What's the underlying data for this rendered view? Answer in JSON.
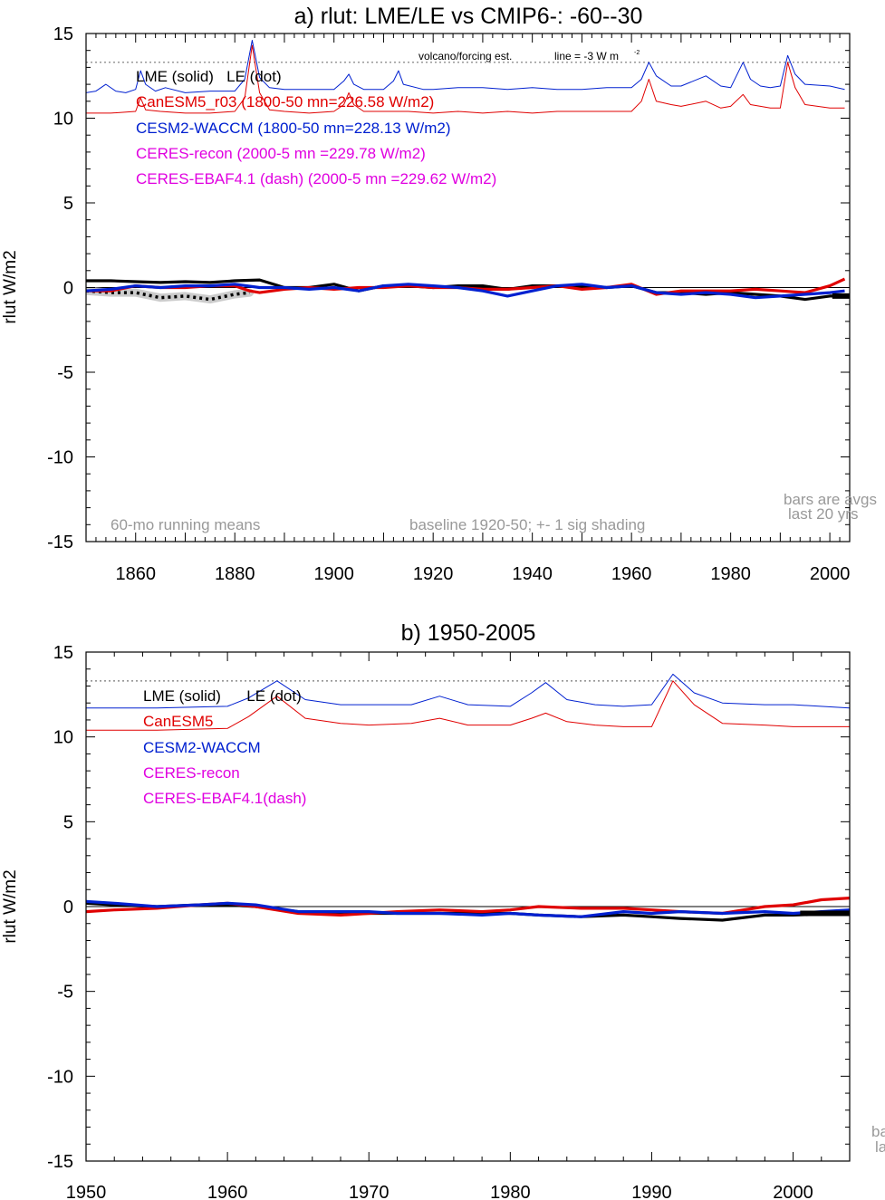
{
  "chart_data": [
    {
      "type": "line",
      "title": "a) rlut: LME/LE vs CMIP6-: -60--30",
      "ylabel": "rlut W/m2",
      "xlabel": "",
      "xlim": [
        1850,
        2004
      ],
      "ylim": [
        -15,
        15
      ],
      "x_ticks": [
        1860,
        1880,
        1900,
        1920,
        1940,
        1960,
        1980,
        2000
      ],
      "y_ticks": [
        -15,
        -10,
        -5,
        0,
        5,
        10,
        15
      ],
      "grid": false,
      "legend_position": "top-left",
      "legend": [
        {
          "text": "LME (solid)   LE (dot)",
          "color": "#000000"
        },
        {
          "text": "CanESM5_r03 (1800-50 mn=226.58 W/m2)",
          "color": "#e00000"
        },
        {
          "text": "CESM2-WACCM (1800-50 mn=228.13 W/m2)",
          "color": "#0020d0"
        },
        {
          "text": "CERES-recon (2000-5 mn =229.78 W/m2)",
          "color": "#e000e0"
        },
        {
          "text": "CERES-EBAF4.1 (dash) (2000-5 mn =229.62 W/m2)",
          "color": "#e000e0"
        }
      ],
      "annotations": {
        "volcano": "volcano/forcing est.",
        "line": "line = -3 W m",
        "line_sup": "-2",
        "running_means": "60-mo running means",
        "baseline": "baseline 1920-50; +- 1 sig shading",
        "bars1": "bars are avgs",
        "bars2": "last 20 yrs"
      },
      "reference_lines": {
        "zero": 0,
        "dotted": 13.3
      },
      "series": [
        {
          "name": "LME",
          "color": "#000000",
          "style": "solid-thick",
          "x": [
            1850,
            1855,
            1860,
            1865,
            1870,
            1875,
            1880,
            1885,
            1890,
            1895,
            1900,
            1905,
            1910,
            1915,
            1920,
            1925,
            1930,
            1935,
            1940,
            1945,
            1950,
            1955,
            1960,
            1965,
            1970,
            1975,
            1980,
            1985,
            1990,
            1995,
            2000,
            2004
          ],
          "y": [
            0.4,
            0.4,
            0.35,
            0.3,
            0.35,
            0.3,
            0.4,
            0.45,
            0.0,
            0.0,
            0.2,
            -0.2,
            0.1,
            0.1,
            0.0,
            0.1,
            0.1,
            -0.1,
            0.1,
            0.1,
            0.1,
            0.0,
            0.1,
            -0.3,
            -0.3,
            -0.4,
            -0.3,
            -0.4,
            -0.5,
            -0.7,
            -0.5,
            -0.5
          ]
        },
        {
          "name": "LE",
          "color": "#000000",
          "style": "dotted",
          "x": [
            1850,
            1855,
            1860,
            1865,
            1870,
            1875,
            1880,
            1883
          ],
          "y": [
            -0.2,
            -0.3,
            -0.3,
            -0.6,
            -0.5,
            -0.7,
            -0.4,
            -0.3
          ]
        },
        {
          "name": "CanESM5",
          "color": "#e00000",
          "style": "solid-thick",
          "x": [
            1850,
            1855,
            1860,
            1865,
            1870,
            1875,
            1880,
            1883,
            1885,
            1890,
            1895,
            1900,
            1905,
            1910,
            1915,
            1920,
            1925,
            1930,
            1935,
            1940,
            1945,
            1950,
            1955,
            1960,
            1965,
            1970,
            1975,
            1980,
            1985,
            1990,
            1995,
            2000,
            2003
          ],
          "y": [
            -0.2,
            -0.2,
            0.1,
            0.0,
            0.0,
            0.1,
            0.1,
            -0.2,
            -0.3,
            -0.1,
            0.0,
            -0.1,
            0.0,
            0.0,
            0.1,
            0.0,
            0.0,
            -0.1,
            -0.1,
            0.0,
            0.1,
            -0.1,
            0.0,
            0.2,
            -0.4,
            -0.2,
            -0.2,
            -0.2,
            -0.1,
            -0.2,
            -0.3,
            0.1,
            0.5
          ]
        },
        {
          "name": "CESM2-WACCM",
          "color": "#0020d0",
          "style": "solid-thick",
          "x": [
            1850,
            1855,
            1860,
            1865,
            1870,
            1875,
            1880,
            1885,
            1890,
            1895,
            1900,
            1905,
            1910,
            1915,
            1920,
            1925,
            1930,
            1935,
            1940,
            1945,
            1950,
            1955,
            1960,
            1965,
            1970,
            1975,
            1980,
            1985,
            1990,
            1995,
            2000,
            2003
          ],
          "y": [
            -0.2,
            -0.1,
            0.1,
            0.0,
            0.1,
            0.1,
            0.2,
            0.0,
            0.0,
            -0.1,
            0.0,
            -0.2,
            0.1,
            0.2,
            0.1,
            0.0,
            -0.2,
            -0.5,
            -0.2,
            0.1,
            0.2,
            0.0,
            0.1,
            -0.3,
            -0.4,
            -0.3,
            -0.4,
            -0.6,
            -0.5,
            -0.4,
            -0.3,
            -0.2
          ]
        },
        {
          "name": "CESM2-WACCM forcing",
          "color": "#0020d0",
          "style": "thin",
          "x": [
            1850,
            1852,
            1854,
            1856,
            1858,
            1860,
            1861,
            1862,
            1864,
            1866,
            1870,
            1875,
            1880,
            1882,
            1883.5,
            1885,
            1887,
            1890,
            1895,
            1900,
            1902,
            1903,
            1904,
            1906,
            1910,
            1912,
            1913,
            1914,
            1918,
            1920,
            1925,
            1930,
            1935,
            1940,
            1945,
            1950,
            1955,
            1960,
            1962,
            1963.5,
            1965,
            1968,
            1970,
            1975,
            1978,
            1980,
            1982.5,
            1984,
            1986,
            1988,
            1990,
            1991.5,
            1993,
            1995,
            2000,
            2003
          ],
          "y": [
            11.5,
            11.6,
            12.0,
            11.6,
            11.5,
            11.7,
            12.8,
            12.0,
            11.6,
            11.8,
            11.5,
            11.6,
            11.6,
            12.3,
            14.6,
            12.4,
            11.8,
            11.7,
            11.7,
            11.7,
            12.2,
            12.6,
            12.0,
            11.7,
            11.7,
            12.2,
            12.8,
            12.0,
            11.7,
            11.7,
            11.8,
            11.8,
            11.7,
            11.8,
            11.7,
            11.7,
            11.8,
            11.8,
            12.3,
            13.3,
            12.5,
            11.9,
            11.9,
            12.5,
            11.9,
            11.8,
            13.3,
            12.3,
            11.9,
            11.8,
            11.9,
            13.7,
            12.6,
            12.0,
            11.9,
            11.7
          ]
        },
        {
          "name": "CanESM5 forcing",
          "color": "#e00000",
          "style": "thin",
          "x": [
            1850,
            1855,
            1860,
            1861,
            1862,
            1865,
            1870,
            1875,
            1880,
            1882,
            1883.5,
            1885,
            1887,
            1890,
            1895,
            1900,
            1902,
            1903,
            1904,
            1906,
            1910,
            1915,
            1920,
            1925,
            1930,
            1935,
            1940,
            1945,
            1950,
            1955,
            1960,
            1962,
            1963.5,
            1965,
            1968,
            1970,
            1975,
            1978,
            1980,
            1982.5,
            1984,
            1986,
            1988,
            1990,
            1991.5,
            1993,
            1995,
            2000,
            2003
          ],
          "y": [
            10.3,
            10.3,
            10.4,
            11.2,
            10.5,
            10.4,
            10.3,
            10.3,
            10.4,
            11.2,
            14.3,
            11.5,
            10.5,
            10.4,
            10.3,
            10.4,
            10.8,
            11.5,
            10.8,
            10.4,
            10.4,
            10.4,
            10.3,
            10.4,
            10.3,
            10.4,
            10.3,
            10.4,
            10.4,
            10.4,
            10.4,
            11.0,
            12.3,
            11.0,
            10.8,
            10.7,
            11.0,
            10.6,
            10.7,
            11.4,
            10.8,
            10.7,
            10.6,
            10.6,
            13.3,
            11.8,
            10.8,
            10.6,
            10.6
          ]
        }
      ]
    },
    {
      "type": "line",
      "title": "b) 1950-2005",
      "ylabel": "rlut W/m2",
      "xlabel": "",
      "xlim": [
        1950,
        2004
      ],
      "ylim": [
        -15,
        15
      ],
      "x_ticks": [
        1950,
        1960,
        1970,
        1980,
        1990,
        2000
      ],
      "y_ticks": [
        -15,
        -10,
        -5,
        0,
        5,
        10,
        15
      ],
      "grid": false,
      "legend_position": "top-left",
      "legend": [
        {
          "text": "LME (solid)      LE (dot)",
          "color": "#000000"
        },
        {
          "text": "CanESM5",
          "color": "#e00000"
        },
        {
          "text": "CESM2-WACCM",
          "color": "#0020d0"
        },
        {
          "text": "CERES-recon",
          "color": "#e000e0"
        },
        {
          "text": "CERES-EBAF4.1(dash)",
          "color": "#e000e0"
        }
      ],
      "annotations": {
        "bars1": "ba",
        "bars2": "la"
      },
      "reference_lines": {
        "zero": 0,
        "dotted": 13.3
      },
      "series": [
        {
          "name": "LME",
          "color": "#000000",
          "style": "solid-thick",
          "x": [
            1950,
            1952,
            1955,
            1958,
            1960,
            1962,
            1965,
            1968,
            1970,
            1972,
            1975,
            1978,
            1980,
            1982,
            1985,
            1988,
            1990,
            1992,
            1995,
            1998,
            2000,
            2004
          ],
          "y": [
            0.2,
            0.1,
            0.0,
            0.1,
            0.1,
            0.0,
            -0.3,
            -0.4,
            -0.4,
            -0.4,
            -0.4,
            -0.4,
            -0.4,
            -0.5,
            -0.6,
            -0.5,
            -0.6,
            -0.7,
            -0.8,
            -0.5,
            -0.5,
            -0.4
          ]
        },
        {
          "name": "CanESM5",
          "color": "#e00000",
          "style": "solid-thick",
          "x": [
            1950,
            1952,
            1955,
            1958,
            1960,
            1962,
            1965,
            1968,
            1970,
            1972,
            1975,
            1978,
            1980,
            1982,
            1985,
            1988,
            1990,
            1992,
            1995,
            1998,
            2000,
            2002,
            2004
          ],
          "y": [
            -0.3,
            -0.2,
            -0.1,
            0.1,
            0.2,
            0.0,
            -0.4,
            -0.5,
            -0.4,
            -0.3,
            -0.2,
            -0.3,
            -0.2,
            0.0,
            -0.1,
            -0.1,
            -0.2,
            -0.3,
            -0.4,
            0.0,
            0.1,
            0.4,
            0.5
          ]
        },
        {
          "name": "CESM2-WACCM",
          "color": "#0020d0",
          "style": "solid-thick",
          "x": [
            1950,
            1952,
            1955,
            1958,
            1960,
            1962,
            1965,
            1968,
            1970,
            1972,
            1975,
            1978,
            1980,
            1982,
            1985,
            1988,
            1990,
            1992,
            1995,
            1998,
            2000,
            2002,
            2004
          ],
          "y": [
            0.3,
            0.2,
            0.0,
            0.1,
            0.2,
            0.1,
            -0.3,
            -0.3,
            -0.3,
            -0.4,
            -0.4,
            -0.5,
            -0.4,
            -0.5,
            -0.6,
            -0.3,
            -0.4,
            -0.3,
            -0.4,
            -0.3,
            -0.4,
            -0.3,
            -0.2
          ]
        },
        {
          "name": "CESM2-WACCM forcing",
          "color": "#0020d0",
          "style": "thin",
          "x": [
            1950,
            1955,
            1960,
            1961.5,
            1963.5,
            1965.5,
            1968,
            1970,
            1973,
            1975,
            1977,
            1980,
            1981.5,
            1982.5,
            1984,
            1986,
            1988,
            1990,
            1991.5,
            1993,
            1995,
            1998,
            2000,
            2004
          ],
          "y": [
            11.7,
            11.7,
            11.8,
            12.3,
            13.3,
            12.2,
            11.9,
            11.9,
            11.9,
            12.4,
            11.9,
            11.8,
            12.6,
            13.2,
            12.2,
            11.9,
            11.8,
            11.9,
            13.7,
            12.6,
            12.0,
            11.9,
            11.9,
            11.7
          ]
        },
        {
          "name": "CanESM5 forcing",
          "color": "#e00000",
          "style": "thin",
          "x": [
            1950,
            1955,
            1960,
            1961.5,
            1963.5,
            1965.5,
            1968,
            1970,
            1973,
            1975,
            1977,
            1980,
            1981.5,
            1982.5,
            1984,
            1986,
            1988,
            1990,
            1991.5,
            1993,
            1995,
            1998,
            2000,
            2004
          ],
          "y": [
            10.4,
            10.4,
            10.5,
            11.2,
            12.4,
            11.1,
            10.8,
            10.7,
            10.8,
            11.1,
            10.7,
            10.7,
            11.1,
            11.4,
            10.9,
            10.7,
            10.6,
            10.6,
            13.3,
            11.9,
            10.8,
            10.7,
            10.6,
            10.6
          ]
        }
      ]
    }
  ]
}
